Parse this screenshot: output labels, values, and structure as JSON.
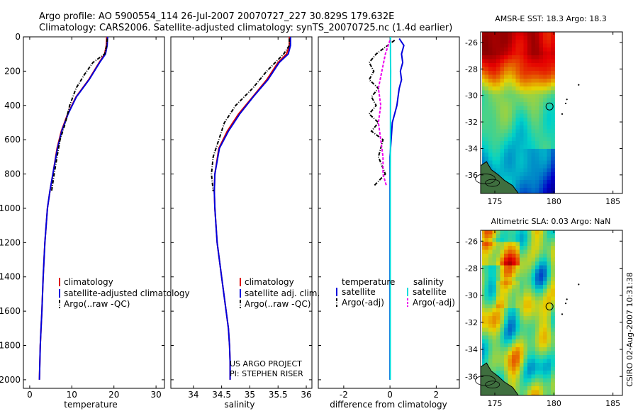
{
  "title": {
    "line1": "Argo profile: AO 5900554_114 26-Jul-2007 20070727_227 30.829S 179.632E",
    "line2": "Climatology: CARS2006. Satellite-adjusted climatology: synTS_20070725.nc (1.4d earlier)"
  },
  "side_label": "CSIRO 02-Aug-2007 10:31:38",
  "project_note": {
    "line1": "US ARGO PROJECT",
    "line2": "PI: STEPHEN RISER"
  },
  "colors": {
    "climatology": "#dd0000",
    "satellite": "#0000dd",
    "argo": "#000000",
    "satellite_diff": "#00dddd",
    "argo_adj": "#ee00ee"
  },
  "chart_data": [
    {
      "id": "temperature",
      "type": "line",
      "xlabel": "temperature",
      "ylabel": "",
      "xlim": [
        -1.5,
        32
      ],
      "ylim": [
        2050,
        0
      ],
      "y_inverted": true,
      "xticks": [
        0,
        10,
        20,
        30
      ],
      "yticks": [
        0,
        200,
        400,
        600,
        800,
        1000,
        1200,
        1400,
        1600,
        1800,
        2000
      ],
      "legend": [
        "climatology",
        "satellite-adjusted climatology",
        "Argo(..raw -QC)"
      ],
      "series": [
        {
          "name": "climatology",
          "color": "#dd0000",
          "style": "solid",
          "x": [
            18.3,
            18.2,
            17.8,
            16.5,
            14.0,
            11.0,
            9.0,
            7.5,
            6.5,
            5.5,
            4.8,
            4.2,
            3.6,
            3.2,
            2.9,
            2.7,
            2.5,
            2.4,
            2.3
          ],
          "y": [
            0,
            50,
            100,
            150,
            250,
            350,
            450,
            550,
            650,
            800,
            900,
            1000,
            1200,
            1400,
            1600,
            1700,
            1800,
            1900,
            2000
          ]
        },
        {
          "name": "satellite-adjusted climatology",
          "color": "#0000dd",
          "style": "solid",
          "x": [
            18.5,
            18.4,
            18.0,
            16.6,
            14.1,
            11.1,
            9.1,
            7.6,
            6.6,
            5.5,
            4.8,
            4.2,
            3.6,
            3.2,
            2.9,
            2.7,
            2.5,
            2.4,
            2.3
          ],
          "y": [
            0,
            50,
            100,
            150,
            250,
            350,
            450,
            550,
            650,
            800,
            900,
            1000,
            1200,
            1400,
            1600,
            1700,
            1800,
            1900,
            2000
          ]
        },
        {
          "name": "Argo(..raw -QC)",
          "color": "#000000",
          "style": "dashdot",
          "x": [
            18.4,
            18.3,
            17.8,
            15.0,
            13.0,
            11.0,
            9.5,
            8.5,
            7.2,
            6.5,
            5.8,
            5.2
          ],
          "y": [
            10,
            50,
            100,
            150,
            220,
            300,
            400,
            500,
            600,
            700,
            800,
            900
          ]
        }
      ]
    },
    {
      "id": "salinity",
      "type": "line",
      "xlabel": "salinity",
      "ylabel": "",
      "xlim": [
        33.6,
        36.1
      ],
      "ylim": [
        2050,
        0
      ],
      "y_inverted": true,
      "xticks": [
        34,
        34.5,
        35,
        35.5,
        36
      ],
      "legend": [
        "climatology",
        "satellite adj. clim.",
        "Argo(..raw -QC)"
      ],
      "series": [
        {
          "name": "climatology",
          "color": "#dd0000",
          "style": "solid",
          "x": [
            35.7,
            35.7,
            35.65,
            35.5,
            35.3,
            35.05,
            34.8,
            34.6,
            34.45,
            34.38,
            34.37,
            34.38,
            34.42,
            34.5,
            34.58,
            34.62,
            34.64,
            34.65,
            34.65
          ],
          "y": [
            0,
            50,
            100,
            150,
            250,
            350,
            450,
            550,
            650,
            800,
            900,
            1000,
            1200,
            1400,
            1600,
            1700,
            1800,
            1900,
            2000
          ]
        },
        {
          "name": "satellite adj. clim.",
          "color": "#0000dd",
          "style": "solid",
          "x": [
            35.72,
            35.72,
            35.68,
            35.52,
            35.32,
            35.06,
            34.82,
            34.62,
            34.46,
            34.38,
            34.37,
            34.38,
            34.42,
            34.5,
            34.58,
            34.62,
            34.64,
            34.65,
            34.65
          ],
          "y": [
            0,
            50,
            100,
            150,
            250,
            350,
            450,
            550,
            650,
            800,
            900,
            1000,
            1200,
            1400,
            1600,
            1700,
            1800,
            1900,
            2000
          ]
        },
        {
          "name": "Argo(..raw -QC)",
          "color": "#000000",
          "style": "dashdot",
          "x": [
            35.7,
            35.7,
            35.6,
            35.3,
            35.05,
            34.75,
            34.55,
            34.45,
            34.35,
            34.32,
            34.35
          ],
          "y": [
            10,
            50,
            100,
            200,
            300,
            400,
            500,
            600,
            700,
            800,
            900
          ]
        }
      ]
    },
    {
      "id": "difference",
      "type": "line",
      "xlabel": "difference from climatology",
      "ylabel": "",
      "xlim": [
        -3.1,
        3.0
      ],
      "ylim": [
        2050,
        0
      ],
      "y_inverted": true,
      "xticks": [
        -2,
        0,
        2
      ],
      "legend_columns": [
        {
          "header": "temperature",
          "entries": [
            "satellite",
            "Argo(-adj)"
          ]
        },
        {
          "header": "salinity",
          "entries": [
            "satellite",
            "Argo(-adj)"
          ]
        }
      ],
      "series": [
        {
          "name": "temperature satellite",
          "color": "#0000dd",
          "style": "solid",
          "x": [
            0.4,
            0.6,
            0.5,
            0.55,
            0.45,
            0.5,
            0.4,
            0.35,
            0.3,
            0.2,
            0.1,
            0.05,
            0,
            0
          ],
          "y": [
            10,
            50,
            100,
            150,
            200,
            250,
            300,
            350,
            400,
            450,
            500,
            600,
            700,
            2000
          ]
        },
        {
          "name": "temperature Argo(-adj)",
          "color": "#000000",
          "style": "dashdot",
          "x": [
            0.2,
            -0.6,
            -0.9,
            -0.7,
            -0.9,
            -0.5,
            -0.8,
            -0.6,
            -0.9,
            -0.5,
            -0.8,
            -0.3,
            -0.5,
            -0.2,
            -0.7
          ],
          "y": [
            20,
            100,
            150,
            200,
            250,
            300,
            350,
            400,
            450,
            500,
            550,
            600,
            700,
            800,
            870
          ]
        },
        {
          "name": "salinity satellite",
          "color": "#00dddd",
          "style": "solid",
          "x": [
            0.02,
            0.02,
            0.03,
            0.02,
            0.02,
            0.01,
            0.01
          ],
          "y": [
            0,
            100,
            200,
            400,
            600,
            800,
            2000
          ]
        },
        {
          "name": "salinity Argo(-adj)",
          "color": "#ee00ee",
          "style": "dashed",
          "x": [
            0.0,
            -0.2,
            -0.35,
            -0.5,
            -0.4,
            -0.5,
            -0.4,
            -0.3,
            -0.3,
            -0.15
          ],
          "y": [
            20,
            100,
            200,
            300,
            400,
            500,
            600,
            700,
            800,
            870
          ]
        }
      ]
    },
    {
      "id": "sst_map",
      "type": "heatmap",
      "title": "AMSR-E SST: 18.3 Argo: 18.3",
      "xlim": [
        173.8,
        185.8
      ],
      "ylim": [
        -37.4,
        -25.2
      ],
      "xticks": [
        175,
        180,
        185
      ],
      "yticks": [
        -26,
        -28,
        -30,
        -32,
        -34,
        -36
      ],
      "argo_position": {
        "lon": 179.632,
        "lat": -30.829
      }
    },
    {
      "id": "sla_map",
      "type": "heatmap",
      "title": "Altimetric SLA: 0.03 Argo: NaN",
      "xlim": [
        173.8,
        185.8
      ],
      "ylim": [
        -37.4,
        -25.2
      ],
      "xticks": [
        175,
        180,
        185
      ],
      "yticks": [
        -26,
        -28,
        -30,
        -32,
        -34,
        -36
      ],
      "argo_position": {
        "lon": 179.632,
        "lat": -30.829
      }
    }
  ]
}
